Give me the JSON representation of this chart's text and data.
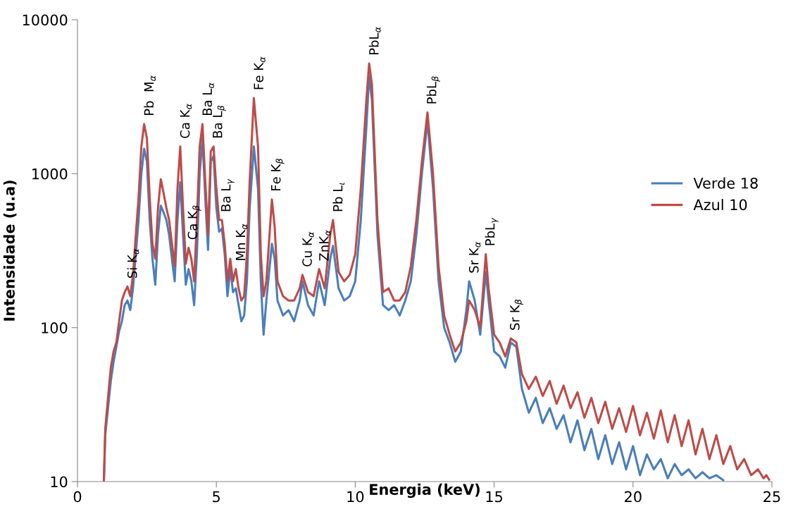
{
  "chart_data": {
    "type": "line",
    "xlabel": "Energia (keV)",
    "ylabel": "Intensidade (u.a)",
    "log": "y",
    "xlim": [
      0,
      25
    ],
    "xticks": [
      0,
      5,
      10,
      15,
      20,
      25
    ],
    "ylim": [
      10,
      10000
    ],
    "yticks": [
      10,
      100,
      1000,
      10000
    ],
    "grid": false,
    "legend": "right",
    "marker": "none",
    "line_style": "solid",
    "series": [
      {
        "name": "Verde 18",
        "color": "#4a7ebb",
        "x": [
          0.95,
          1.0,
          1.1,
          1.2,
          1.3,
          1.4,
          1.5,
          1.6,
          1.7,
          1.8,
          1.9,
          2.0,
          2.1,
          2.2,
          2.3,
          2.4,
          2.5,
          2.6,
          2.7,
          2.8,
          2.9,
          3.0,
          3.1,
          3.2,
          3.3,
          3.4,
          3.5,
          3.6,
          3.7,
          3.8,
          3.9,
          4.0,
          4.1,
          4.2,
          4.3,
          4.4,
          4.5,
          4.6,
          4.7,
          4.8,
          4.9,
          5.0,
          5.1,
          5.2,
          5.3,
          5.4,
          5.5,
          5.6,
          5.7,
          5.8,
          5.9,
          6.0,
          6.1,
          6.2,
          6.35,
          6.5,
          6.6,
          6.7,
          6.8,
          7.0,
          7.1,
          7.2,
          7.4,
          7.6,
          7.8,
          8.0,
          8.1,
          8.3,
          8.5,
          8.7,
          8.9,
          9.1,
          9.2,
          9.4,
          9.6,
          9.8,
          10.0,
          10.2,
          10.4,
          10.5,
          10.6,
          10.8,
          11.0,
          11.2,
          11.4,
          11.6,
          11.8,
          12.0,
          12.2,
          12.4,
          12.6,
          12.8,
          13.0,
          13.2,
          13.4,
          13.6,
          13.8,
          14.0,
          14.1,
          14.3,
          14.5,
          14.7,
          14.8,
          15.0,
          15.2,
          15.4,
          15.6,
          15.8,
          16.0,
          16.25,
          16.5,
          16.75,
          17.0,
          17.25,
          17.5,
          17.75,
          18.0,
          18.25,
          18.5,
          18.75,
          19.0,
          19.25,
          19.5,
          19.75,
          20.0,
          20.25,
          20.5,
          20.75,
          21.0,
          21.25,
          21.5,
          21.75,
          22.0,
          22.25,
          22.5,
          22.75,
          23.0,
          23.25
        ],
        "values": [
          10,
          20,
          30,
          45,
          60,
          75,
          95,
          110,
          140,
          150,
          130,
          180,
          300,
          500,
          1000,
          1450,
          1200,
          500,
          280,
          190,
          400,
          620,
          560,
          500,
          400,
          280,
          200,
          500,
          880,
          400,
          190,
          240,
          200,
          140,
          300,
          1000,
          1700,
          700,
          320,
          1200,
          1300,
          600,
          420,
          440,
          300,
          160,
          240,
          170,
          180,
          140,
          110,
          120,
          200,
          600,
          1500,
          800,
          200,
          90,
          150,
          350,
          280,
          150,
          120,
          130,
          110,
          150,
          200,
          140,
          120,
          200,
          140,
          280,
          340,
          180,
          150,
          160,
          200,
          500,
          2000,
          4300,
          3000,
          400,
          140,
          130,
          140,
          120,
          150,
          200,
          400,
          1000,
          2200,
          800,
          200,
          100,
          80,
          60,
          70,
          130,
          200,
          150,
          90,
          230,
          150,
          70,
          65,
          55,
          80,
          75,
          40,
          28,
          35,
          24,
          30,
          22,
          27,
          18,
          25,
          16,
          22,
          14,
          20,
          13,
          18,
          12,
          17,
          11,
          15,
          12,
          14,
          10.5,
          13,
          11,
          12,
          10.5,
          11.5,
          10.5,
          11,
          10.2
        ]
      },
      {
        "name": "Azul 10",
        "color": "#be4b48",
        "x": [
          0.95,
          1.0,
          1.1,
          1.2,
          1.3,
          1.4,
          1.5,
          1.6,
          1.7,
          1.8,
          1.9,
          2.0,
          2.1,
          2.2,
          2.3,
          2.4,
          2.5,
          2.6,
          2.7,
          2.8,
          2.9,
          3.0,
          3.1,
          3.2,
          3.3,
          3.4,
          3.5,
          3.6,
          3.7,
          3.8,
          3.9,
          4.0,
          4.1,
          4.2,
          4.3,
          4.4,
          4.5,
          4.6,
          4.7,
          4.8,
          4.9,
          5.0,
          5.1,
          5.2,
          5.3,
          5.4,
          5.5,
          5.6,
          5.7,
          5.8,
          5.9,
          6.0,
          6.1,
          6.2,
          6.35,
          6.5,
          6.6,
          6.7,
          6.8,
          7.0,
          7.1,
          7.2,
          7.4,
          7.6,
          7.8,
          8.0,
          8.1,
          8.3,
          8.5,
          8.7,
          8.9,
          9.1,
          9.2,
          9.4,
          9.6,
          9.8,
          10.0,
          10.2,
          10.4,
          10.5,
          10.6,
          10.8,
          11.0,
          11.2,
          11.4,
          11.6,
          11.8,
          12.0,
          12.2,
          12.4,
          12.6,
          12.8,
          13.0,
          13.2,
          13.4,
          13.6,
          13.8,
          14.0,
          14.1,
          14.3,
          14.5,
          14.7,
          14.8,
          15.0,
          15.2,
          15.4,
          15.6,
          15.8,
          16.0,
          16.25,
          16.5,
          16.75,
          17.0,
          17.25,
          17.5,
          17.75,
          18.0,
          18.25,
          18.5,
          18.75,
          19.0,
          19.25,
          19.5,
          19.75,
          20.0,
          20.25,
          20.5,
          20.75,
          21.0,
          21.25,
          21.5,
          21.75,
          22.0,
          22.25,
          22.5,
          22.75,
          23.0,
          23.25,
          23.5,
          23.75,
          24.0,
          24.25,
          24.5,
          24.7,
          24.8,
          24.9
        ],
        "values": [
          10,
          22,
          35,
          55,
          70,
          80,
          110,
          150,
          170,
          185,
          160,
          220,
          400,
          700,
          1500,
          2100,
          1700,
          700,
          350,
          280,
          600,
          920,
          750,
          600,
          500,
          350,
          250,
          800,
          1500,
          600,
          260,
          330,
          280,
          200,
          500,
          1500,
          2100,
          900,
          400,
          1400,
          1500,
          800,
          500,
          500,
          350,
          200,
          280,
          200,
          240,
          180,
          150,
          160,
          300,
          900,
          3100,
          1500,
          300,
          160,
          200,
          680,
          450,
          200,
          160,
          150,
          150,
          180,
          220,
          170,
          160,
          240,
          180,
          400,
          500,
          230,
          200,
          220,
          300,
          800,
          3000,
          5200,
          3800,
          500,
          170,
          180,
          150,
          150,
          170,
          250,
          500,
          1200,
          2500,
          1000,
          250,
          120,
          90,
          70,
          80,
          110,
          150,
          130,
          100,
          300,
          180,
          90,
          80,
          65,
          85,
          80,
          50,
          40,
          48,
          36,
          45,
          32,
          42,
          30,
          38,
          26,
          35,
          24,
          33,
          22,
          30,
          21,
          31,
          20,
          28,
          19,
          29,
          18,
          27,
          17,
          25,
          15,
          22,
          14,
          20,
          13,
          17,
          12,
          14,
          11,
          12,
          10.5,
          11,
          10.3
        ]
      }
    ],
    "annotations": [
      {
        "text": "Si K$_{α}$",
        "x": 1.8,
        "y": 185
      },
      {
        "text": "Pb  M$_{α}$",
        "x": 2.4,
        "y": 2100
      },
      {
        "text": "Ca K$_{α}$",
        "x": 3.7,
        "y": 1500
      },
      {
        "text": "Ba L$_{α}$",
        "x": 4.5,
        "y": 2100
      },
      {
        "text": "Ba L$_{β}$",
        "x": 4.9,
        "y": 1500
      },
      {
        "text": "Ba L$_{γ}$",
        "x": 5.2,
        "y": 500
      },
      {
        "text": "Ca K$_{β}$",
        "x": 4.0,
        "y": 330
      },
      {
        "text": "Mn K$_{α}$",
        "x": 5.7,
        "y": 240
      },
      {
        "text": "Fe K$_{α}$",
        "x": 6.35,
        "y": 3100
      },
      {
        "text": "Fe K$_{β}$",
        "x": 7.0,
        "y": 680
      },
      {
        "text": "Cu K$_{α}$",
        "x": 8.1,
        "y": 220
      },
      {
        "text": "ZnK$_{α}$",
        "x": 8.7,
        "y": 240
      },
      {
        "text": "Pb L$_{ι}$",
        "x": 9.2,
        "y": 500
      },
      {
        "text": "PbL$_{α}$",
        "x": 10.5,
        "y": 5200
      },
      {
        "text": "PbL$_{β}$",
        "x": 12.6,
        "y": 2500
      },
      {
        "text": "Sr K$_{α}$",
        "x": 14.1,
        "y": 200
      },
      {
        "text": "PbL$_{γ}$",
        "x": 14.7,
        "y": 300
      },
      {
        "text": "Sr K$_{β}$",
        "x": 15.6,
        "y": 85
      }
    ]
  }
}
